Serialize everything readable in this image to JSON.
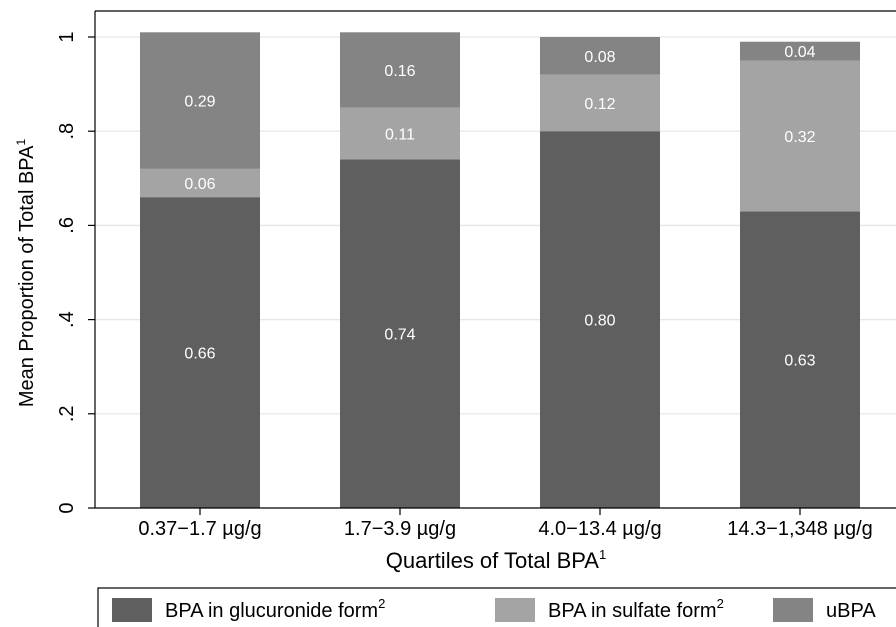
{
  "chart_data": {
    "type": "bar",
    "stacked": true,
    "categories": [
      "0.37−1.7 µg/g",
      "1.7−3.9 µg/g",
      "4.0−13.4 µg/g",
      "14.3−1,348 µg/g"
    ],
    "series": [
      {
        "name": "BPA in glucuronide form",
        "name_sup": "2",
        "color": "#5f5f5f",
        "values": [
          0.66,
          0.74,
          0.8,
          0.63
        ],
        "labels": [
          "0.66",
          "0.74",
          "0.80",
          "0.63"
        ]
      },
      {
        "name": "BPA in sulfate form",
        "name_sup": "2",
        "color": "#a4a4a4",
        "values": [
          0.06,
          0.11,
          0.12,
          0.32
        ],
        "labels": [
          "0.06",
          "0.11",
          "0.12",
          "0.32"
        ]
      },
      {
        "name": "uBPA",
        "name_sup": "",
        "color": "#848484",
        "values": [
          0.29,
          0.16,
          0.08,
          0.04
        ],
        "labels": [
          "0.29",
          "0.16",
          "0.08",
          "0.04"
        ]
      }
    ],
    "xlabel": "Quartiles of Total BPA",
    "xlabel_sup": "1",
    "ylabel": "Mean Proportion of Total BPA",
    "ylabel_sup": "1",
    "ylim": [
      0,
      1
    ],
    "yticks": [
      0,
      0.2,
      0.4,
      0.6,
      0.8,
      1
    ],
    "ytick_labels": [
      "0",
      ".2",
      ".4",
      ".6",
      ".8",
      "1"
    ],
    "grid": true,
    "legend_position": "bottom"
  }
}
